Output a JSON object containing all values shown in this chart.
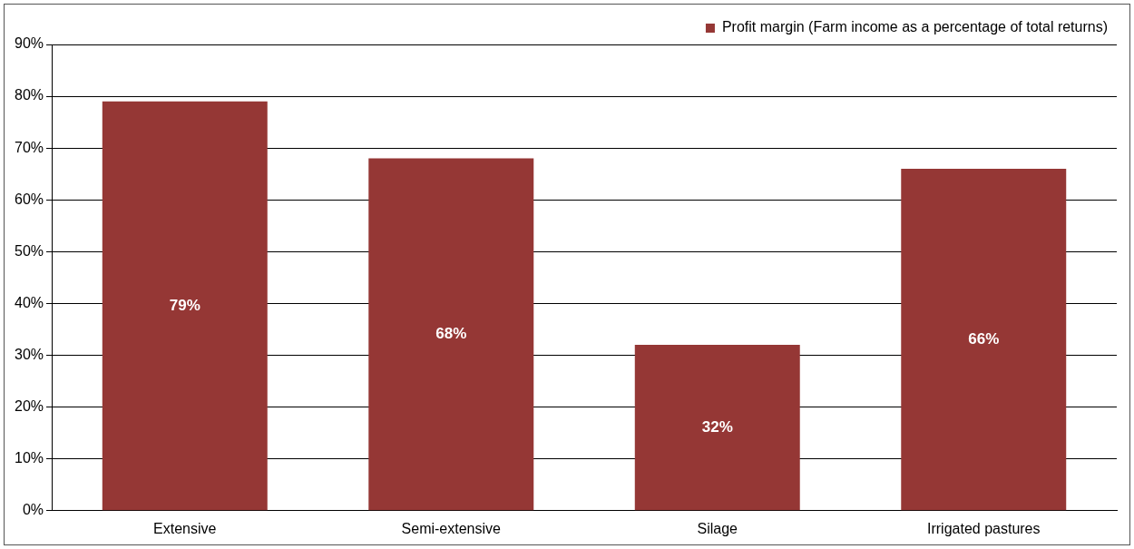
{
  "chart_data": {
    "type": "bar",
    "categories": [
      "Extensive",
      "Semi-extensive",
      "Silage",
      "Irrigated pastures"
    ],
    "series": [
      {
        "name": "Profit margin (Farm income as a percentage of total returns)",
        "color": "#953735",
        "values": [
          79,
          68,
          32,
          66
        ],
        "value_labels": [
          "79%",
          "68%",
          "32%",
          "66%"
        ]
      }
    ],
    "ylim": [
      0,
      90
    ],
    "yticks": [
      {
        "value": 0,
        "label": "0%"
      },
      {
        "value": 10,
        "label": "10%"
      },
      {
        "value": 20,
        "label": "20%"
      },
      {
        "value": 30,
        "label": "30%"
      },
      {
        "value": 40,
        "label": "40%"
      },
      {
        "value": 50,
        "label": "50%"
      },
      {
        "value": 60,
        "label": "60%"
      },
      {
        "value": 70,
        "label": "70%"
      },
      {
        "value": 80,
        "label": "80%"
      },
      {
        "value": 90,
        "label": "90%"
      }
    ],
    "grid": "y",
    "legend": "top right"
  }
}
